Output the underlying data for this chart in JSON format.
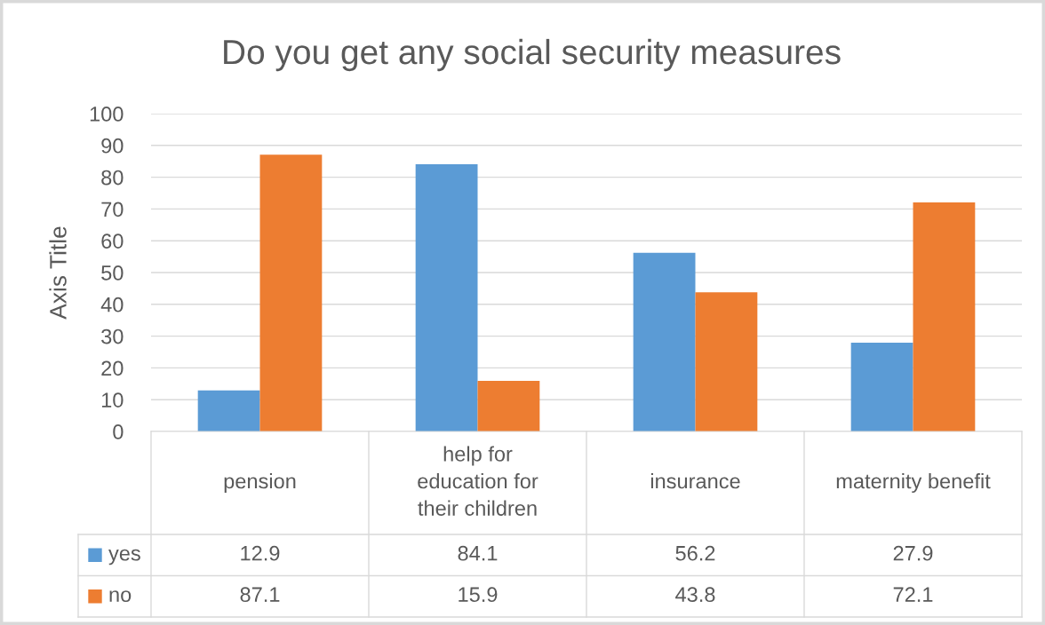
{
  "chart_data": {
    "type": "bar",
    "title": "Do you get any social security measures",
    "ylabel": "Axis Title",
    "categories": [
      "pension",
      "help for education for their children",
      "insurance",
      "maternity benefit"
    ],
    "series": [
      {
        "name": "yes",
        "color": "#5b9bd5",
        "values": [
          12.9,
          84.1,
          56.2,
          27.9
        ]
      },
      {
        "name": "no",
        "color": "#ed7d31",
        "values": [
          87.1,
          15.9,
          43.8,
          72.1
        ]
      }
    ],
    "ylim": [
      0,
      100
    ],
    "yticks": [
      0,
      10,
      20,
      30,
      40,
      50,
      60,
      70,
      80,
      90,
      100
    ],
    "grid": "y",
    "legend": "bottom",
    "data_labels": true
  }
}
